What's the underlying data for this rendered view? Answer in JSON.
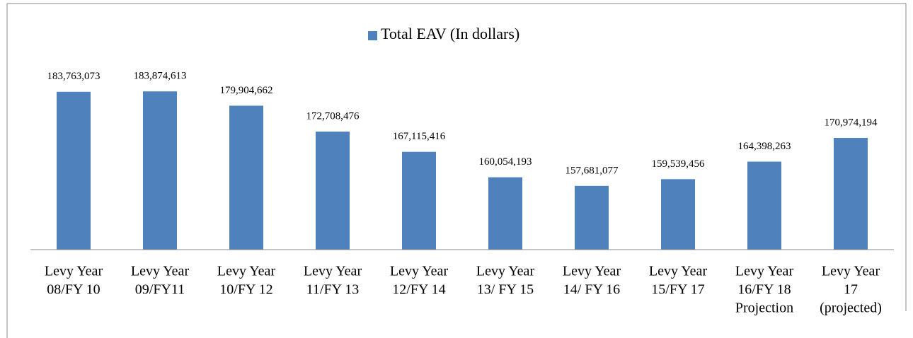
{
  "chart_data": {
    "type": "bar",
    "series": [
      {
        "name": "Total EAV (In dollars)",
        "color": "#4f81bd",
        "values": [
          183763073,
          183874613,
          179904662,
          172708476,
          167115416,
          160054193,
          157681077,
          159539456,
          164398263,
          170974194
        ],
        "value_labels": [
          "183,763,073",
          "183,874,613",
          "179,904,662",
          "172,708,476",
          "167,115,416",
          "160,054,193",
          "157,681,077",
          "159,539,456",
          "164,398,263",
          "170,974,194"
        ]
      }
    ],
    "categories": [
      [
        "Levy Year",
        "08/FY 10"
      ],
      [
        "Levy Year",
        "09/FY11"
      ],
      [
        "Levy Year",
        "10/FY 12"
      ],
      [
        "Levy Year",
        "11/FY 13"
      ],
      [
        "Levy Year",
        "12/FY 14"
      ],
      [
        "Levy Year",
        "13/ FY 15"
      ],
      [
        "Levy Year",
        "14/ FY 16"
      ],
      [
        "Levy Year",
        "15/FY 17"
      ],
      [
        "Levy Year",
        "16/FY 18",
        "Projection"
      ],
      [
        "Levy Year",
        "17",
        "(projected)"
      ]
    ],
    "ylim": [
      140000000,
      190000000
    ],
    "legend": "top"
  }
}
